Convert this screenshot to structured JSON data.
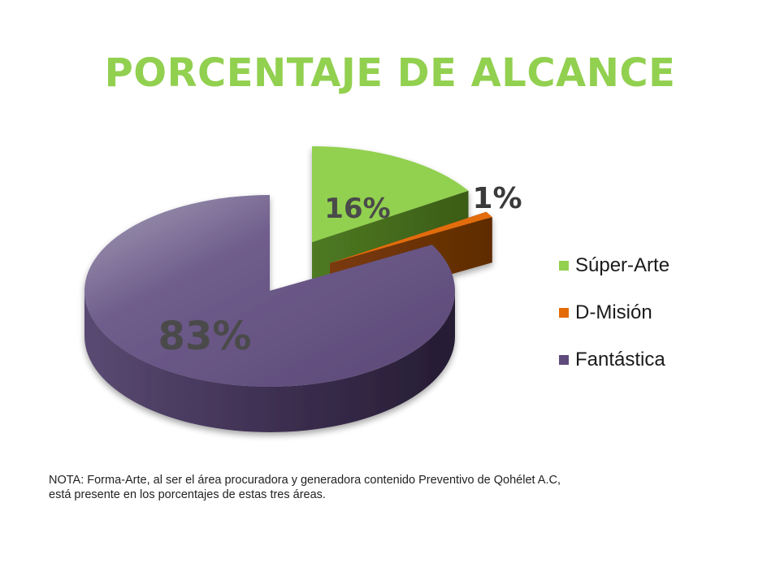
{
  "title": "PORCENTAJE DE ALCANCE",
  "colors": {
    "title": "#92d050",
    "label_dark": "#4a4a4a",
    "label_light": "#3a3a3a"
  },
  "chart_data": {
    "type": "pie",
    "style": "3d-exploded",
    "categories": [
      "Súper-Arte",
      "D-Misión",
      "Fantástica"
    ],
    "values": [
      16,
      1,
      83
    ],
    "data_labels": [
      "16%",
      "1%",
      "83%"
    ],
    "colors": [
      "#92d050",
      "#e36c09",
      "#5f4b7c"
    ],
    "legend_position": "right"
  },
  "legend": {
    "items": [
      {
        "label": "Súper-Arte",
        "color": "#92d050"
      },
      {
        "label": "D-Misión",
        "color": "#e36c09"
      },
      {
        "label": "Fantástica",
        "color": "#5f4b7c"
      }
    ]
  },
  "note": {
    "line1": "NOTA: Forma-Arte, al ser el área procuradora y generadora contenido Preventivo de Qohélet A.C,",
    "line2": "está presente en los porcentajes de estas tres áreas."
  }
}
